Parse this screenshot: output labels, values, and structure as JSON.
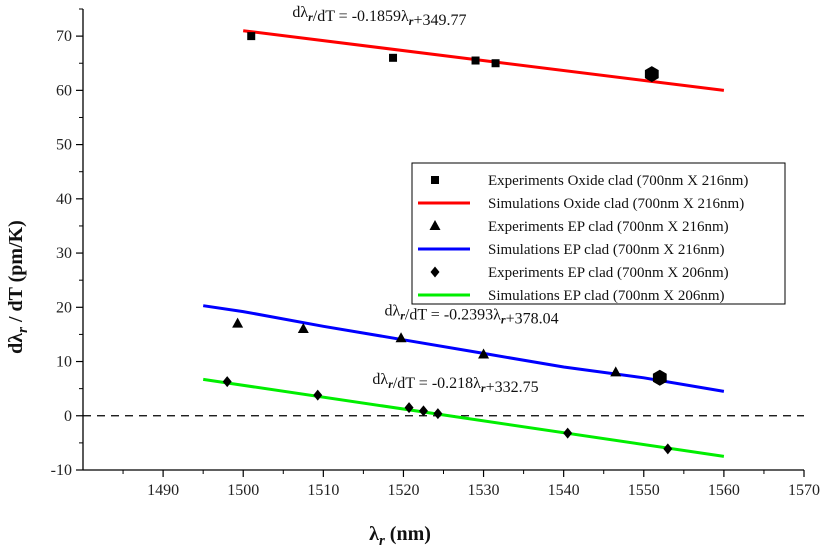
{
  "chart_data": {
    "type": "scatter",
    "xlabel": "λr (nm)",
    "ylabel": "dλr / dT (pm/K)",
    "xlim": [
      1480,
      1570
    ],
    "ylim": [
      -10,
      75
    ],
    "x_ticks": [
      1490,
      1500,
      1510,
      1520,
      1530,
      1540,
      1550,
      1560,
      1570
    ],
    "y_ticks": [
      -10,
      0,
      10,
      20,
      30,
      40,
      50,
      60,
      70
    ],
    "x_tick_labels": [
      "1490",
      "1500",
      "1510",
      "1520",
      "1530",
      "1540",
      "1550",
      "1560",
      "1570"
    ],
    "y_tick_labels": [
      "-10",
      "0",
      "10",
      "20",
      "30",
      "40",
      "50",
      "60",
      "70"
    ],
    "reference_line": {
      "y": 0,
      "style": "dashed"
    },
    "annotations": [
      {
        "id": "eq-oxide",
        "text": "dλr/dT = -0.1859λr+349.77",
        "x": 1517,
        "y": 73.5
      },
      {
        "id": "eq-ep216",
        "text": "dλr/dT = -0.2393λr+378.04",
        "x": 1528.5,
        "y": 18.5
      },
      {
        "id": "eq-ep206",
        "text": "dλr/dT = -0.218λr+332.75",
        "x": 1526.5,
        "y": 5.9
      }
    ],
    "highlight_markers": [
      {
        "x": 1551,
        "y": 63,
        "shape": "hexagon"
      },
      {
        "x": 1552,
        "y": 7,
        "shape": "hexagon"
      }
    ],
    "series": [
      {
        "name": "Experiments Oxide clad (700nm X 216nm)",
        "kind": "scatter",
        "marker": "square",
        "color": "#000000",
        "points": [
          [
            1501,
            70
          ],
          [
            1518.7,
            66
          ],
          [
            1529,
            65.5
          ],
          [
            1531.5,
            65
          ]
        ]
      },
      {
        "name": "Simulations Oxide clad (700nm X 216nm)",
        "kind": "line",
        "color": "#ff0000",
        "points": [
          [
            1500,
            71
          ],
          [
            1560,
            60
          ]
        ]
      },
      {
        "name": "Experiments EP clad (700nm X 216nm)",
        "kind": "scatter",
        "marker": "triangle",
        "color": "#000000",
        "points": [
          [
            1499.3,
            17
          ],
          [
            1507.5,
            16
          ],
          [
            1519.7,
            14.3
          ],
          [
            1530,
            11.3
          ],
          [
            1546.5,
            8
          ]
        ]
      },
      {
        "name": "Simulations EP clad (700nm X 216nm)",
        "kind": "line",
        "color": "#0000ff",
        "points": [
          [
            1495,
            20.3
          ],
          [
            1500,
            19.2
          ],
          [
            1510,
            16.5
          ],
          [
            1520,
            14
          ],
          [
            1530,
            11.5
          ],
          [
            1540,
            9
          ],
          [
            1550,
            7
          ],
          [
            1560,
            4.5
          ]
        ]
      },
      {
        "name": "Experiments EP clad (700nm X 206nm)",
        "kind": "scatter",
        "marker": "diamond",
        "color": "#000000",
        "points": [
          [
            1498,
            6.3
          ],
          [
            1509.3,
            3.8
          ],
          [
            1520.7,
            1.5
          ],
          [
            1522.5,
            0.9
          ],
          [
            1524.3,
            0.4
          ],
          [
            1540.5,
            -3.2
          ],
          [
            1553,
            -6.1
          ]
        ]
      },
      {
        "name": "Simulations EP clad (700nm X 206nm)",
        "kind": "line",
        "color": "#00ee00",
        "points": [
          [
            1495,
            6.7
          ],
          [
            1560,
            -7.5
          ]
        ]
      }
    ],
    "legend": {
      "position": "right-middle"
    }
  }
}
